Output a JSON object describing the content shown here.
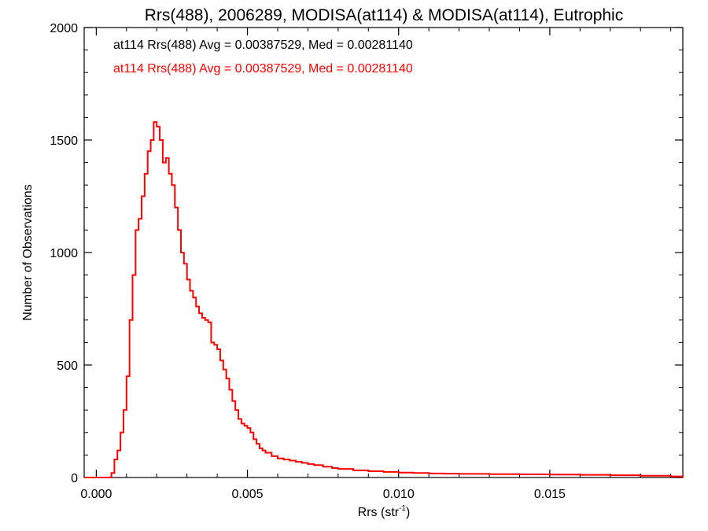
{
  "chart_data": {
    "type": "histogram-step",
    "title": "Rrs(488), 2006289, MODISA(at114) & MODISA(at114), Eutrophic",
    "xlabel": "Rrs (str",
    "xlabel_sup": "-1",
    "xlabel_end": ")",
    "ylabel": "Number of Observations",
    "xlim": [
      -0.0004,
      0.0194
    ],
    "ylim": [
      0,
      2000
    ],
    "xticks": [
      0.0,
      0.005,
      0.01,
      0.015
    ],
    "xtick_labels": [
      "0.000",
      "0.005",
      "0.010",
      "0.015"
    ],
    "yticks": [
      0,
      500,
      1000,
      1500,
      2000
    ],
    "ytick_labels": [
      "0",
      "500",
      "1000",
      "1500",
      "2000"
    ],
    "annotations": [
      {
        "text": "at114 Rrs(488) Avg = 0.00387529, Med = 0.00281140",
        "color": "#000000"
      },
      {
        "text": "at114 Rrs(488) Avg = 0.00387529, Med = 0.00281140",
        "color": "#ff0000"
      }
    ],
    "series": [
      {
        "color": "#ff0000",
        "x": [
          -0.0004,
          0.0005,
          0.0006,
          0.0007,
          0.0008,
          0.0009,
          0.001,
          0.0011,
          0.0012,
          0.0013,
          0.0014,
          0.0015,
          0.0016,
          0.0017,
          0.0018,
          0.0019,
          0.002,
          0.0021,
          0.0022,
          0.0023,
          0.0024,
          0.0025,
          0.0026,
          0.0027,
          0.0028,
          0.0029,
          0.003,
          0.0031,
          0.0032,
          0.0033,
          0.0034,
          0.0035,
          0.0036,
          0.0037,
          0.0038,
          0.0039,
          0.004,
          0.0041,
          0.0042,
          0.0043,
          0.0044,
          0.0045,
          0.0046,
          0.0047,
          0.0048,
          0.0049,
          0.005,
          0.0051,
          0.0052,
          0.0053,
          0.0054,
          0.0055,
          0.0056,
          0.0058,
          0.006,
          0.0062,
          0.0064,
          0.0066,
          0.0068,
          0.007,
          0.0072,
          0.0075,
          0.0078,
          0.008,
          0.0085,
          0.009,
          0.0095,
          0.01,
          0.0105,
          0.011,
          0.0115,
          0.012,
          0.013,
          0.014,
          0.015,
          0.016,
          0.017,
          0.018,
          0.019,
          0.0194
        ],
        "y": [
          0,
          20,
          80,
          120,
          200,
          300,
          450,
          700,
          900,
          1100,
          1150,
          1250,
          1350,
          1450,
          1500,
          1580,
          1560,
          1500,
          1400,
          1420,
          1350,
          1300,
          1200,
          1100,
          1000,
          950,
          880,
          830,
          800,
          760,
          730,
          710,
          700,
          690,
          600,
          590,
          570,
          520,
          480,
          440,
          390,
          340,
          300,
          260,
          240,
          230,
          220,
          200,
          170,
          150,
          130,
          120,
          110,
          95,
          85,
          80,
          75,
          70,
          65,
          60,
          55,
          48,
          42,
          38,
          32,
          28,
          25,
          22,
          20,
          18,
          17,
          16,
          15,
          14,
          13,
          12,
          10,
          8,
          5,
          0
        ]
      }
    ]
  }
}
